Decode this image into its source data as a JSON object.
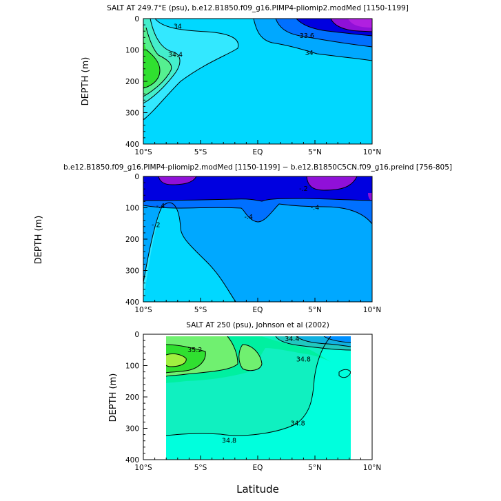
{
  "palette": {
    "ocean_cyan": "#00d8ff",
    "light_cyan": "#33e8ff",
    "deep_blue": "#0000e0",
    "mid_blue": "#0070ff",
    "sky_blue": "#00a8ff",
    "purple": "#9010d8",
    "magenta": "#b020e0",
    "green": "#30e030",
    "light_green": "#70f070",
    "aqua_green": "#00f0a0",
    "teal": "#10f0c0",
    "aqua": "#00ffdd"
  },
  "xlabel": "Latitude",
  "chart_data": [
    {
      "type": "contour",
      "title": "SALT AT 249.7°E (psu), b.e12.B1850.f09_g16.PIMP4-pliomip2.modMed [1150-1199]",
      "ylabel": "DEPTH (m)",
      "xlim": [
        -10,
        10
      ],
      "ylim": [
        400,
        0
      ],
      "x_ticks": [
        "10°S",
        "5°S",
        "EQ",
        "5°N",
        "10°N"
      ],
      "y_ticks": [
        0,
        100,
        200,
        300,
        400
      ],
      "contour_labels": [
        {
          "text": "34",
          "x": -7.0,
          "y": 25
        },
        {
          "text": "34.4",
          "x": -7.2,
          "y": 115
        },
        {
          "text": "33.6",
          "x": 4.3,
          "y": 55
        },
        {
          "text": "34",
          "x": 4.5,
          "y": 110
        }
      ]
    },
    {
      "type": "contour",
      "title": "b.e12.B1850.f09_g16.PIMP4-pliomip2.modMed [1150-1199] − b.e12.B1850C5CN.f09_g16.preind [756-805]",
      "ylabel": "DEPTH (m)",
      "xlim": [
        -10,
        10
      ],
      "ylim": [
        400,
        0
      ],
      "x_ticks": [
        "10°S",
        "5°S",
        "EQ",
        "5°N",
        "10°N"
      ],
      "y_ticks": [
        0,
        100,
        200,
        300,
        400
      ],
      "contour_labels": [
        {
          "text": "-.2",
          "x": 4.0,
          "y": 40
        },
        {
          "text": "-.4",
          "x": -8.5,
          "y": 95
        },
        {
          "text": "-.4",
          "x": -0.8,
          "y": 130
        },
        {
          "text": "-.4",
          "x": 5.0,
          "y": 100
        },
        {
          "text": "-.2",
          "x": -8.9,
          "y": 155
        }
      ]
    },
    {
      "type": "contour",
      "title": "SALT AT 250 (psu), Johnson et al (2002)",
      "ylabel": "DEPTH (m)",
      "xlim": [
        -10,
        10
      ],
      "ylim": [
        400,
        0
      ],
      "x_ticks": [
        "10°S",
        "5°S",
        "EQ",
        "5°N",
        "10°N"
      ],
      "y_ticks": [
        0,
        100,
        200,
        300,
        400
      ],
      "contour_labels": [
        {
          "text": "35.2",
          "x": -5.5,
          "y": 50
        },
        {
          "text": "34.4",
          "x": 3.0,
          "y": 15
        },
        {
          "text": "34.8",
          "x": 4.0,
          "y": 80
        },
        {
          "text": "34.8",
          "x": 3.5,
          "y": 285
        },
        {
          "text": "34.8",
          "x": -2.5,
          "y": 340
        }
      ]
    }
  ]
}
